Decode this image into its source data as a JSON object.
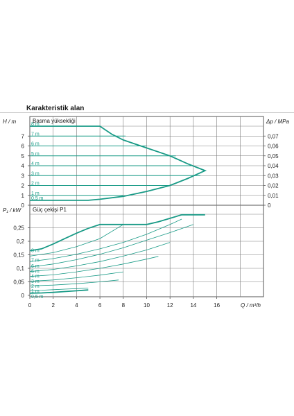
{
  "header": {
    "title": "Karakteristik alan"
  },
  "chart_data": [
    {
      "type": "line",
      "title": "Basma yüksekliği",
      "ylabel": "H / m",
      "y2label": "Δp / MPa",
      "xlim": [
        0,
        20
      ],
      "ylim": [
        0,
        8
      ],
      "y2lim": [
        0,
        0.08
      ],
      "yticks": [
        "0",
        "1",
        "2",
        "3",
        "4",
        "5",
        "6",
        "7"
      ],
      "y2ticks": [
        "0",
        "0,01",
        "0,02",
        "0,03",
        "0,04",
        "0,05",
        "0,06",
        "0,07"
      ],
      "grid": true,
      "levels": [
        {
          "label": "8 m",
          "h": 8,
          "q_end": 6.0
        },
        {
          "label": "7 m",
          "h": 7,
          "q_end": 8.2
        },
        {
          "label": "6 m",
          "h": 6,
          "q_end": 10.0
        },
        {
          "label": "5 m",
          "h": 5,
          "q_end": 12.5
        },
        {
          "label": "4 m",
          "h": 4,
          "q_end": 13.8
        },
        {
          "label": "3 m",
          "h": 3,
          "q_end": 14.6
        },
        {
          "label": "2 m",
          "h": 2,
          "q_end": 12.0
        },
        {
          "label": "1 m",
          "h": 1,
          "q_end": 8.0
        },
        {
          "label": "0,5 m",
          "h": 0.5,
          "q_end": 5.0
        }
      ],
      "envelope": [
        [
          0,
          8
        ],
        [
          6.0,
          8
        ],
        [
          7.0,
          7.2
        ],
        [
          8.0,
          6.6
        ],
        [
          10.0,
          5.8
        ],
        [
          12.0,
          5.0
        ],
        [
          13.5,
          4.2
        ],
        [
          15.0,
          3.5
        ],
        [
          13.5,
          2.7
        ],
        [
          12.0,
          2.0
        ],
        [
          10.0,
          1.4
        ],
        [
          8.0,
          0.9
        ],
        [
          6.0,
          0.6
        ],
        [
          5.0,
          0.5
        ],
        [
          0,
          0.5
        ]
      ]
    },
    {
      "type": "line",
      "title": "Güç çekişi P1",
      "ylabel": "P₁ / kW",
      "xlabel": "Q / m³/h",
      "xlim": [
        0,
        20
      ],
      "ylim": [
        0,
        0.3
      ],
      "xticks": [
        "0",
        "2",
        "4",
        "6",
        "8",
        "10",
        "12",
        "14",
        "16"
      ],
      "yticks": [
        "0",
        "0,05",
        "0,1",
        "0,15",
        "0,2",
        "0,25"
      ],
      "grid": true,
      "level_labels": [
        "8 m",
        "7 m",
        "6 m",
        "5 m",
        "4 m",
        "3 m",
        "2 m",
        "1 m",
        "0,5 m"
      ],
      "series": [
        {
          "points": [
            [
              0,
              0.165
            ],
            [
              1.0,
              0.172
            ],
            [
              2.0,
              0.19
            ],
            [
              3.0,
              0.21
            ],
            [
              4.0,
              0.23
            ],
            [
              5.0,
              0.248
            ],
            [
              6.0,
              0.262
            ],
            [
              10.0,
              0.262
            ],
            [
              11.0,
              0.272
            ],
            [
              12.0,
              0.285
            ],
            [
              13.0,
              0.298
            ],
            [
              15.0,
              0.298
            ]
          ]
        },
        {
          "points": [
            [
              0,
              0.145
            ],
            [
              2,
              0.158
            ],
            [
              4,
              0.18
            ],
            [
              6,
              0.21
            ],
            [
              8,
              0.262
            ]
          ]
        },
        {
          "points": [
            [
              0,
              0.125
            ],
            [
              2,
              0.136
            ],
            [
              4,
              0.152
            ],
            [
              6,
              0.172
            ],
            [
              8,
              0.196
            ],
            [
              10,
              0.226
            ],
            [
              12,
              0.262
            ],
            [
              13,
              0.282
            ]
          ]
        },
        {
          "points": [
            [
              0,
              0.105
            ],
            [
              2,
              0.116
            ],
            [
              4,
              0.132
            ],
            [
              6,
              0.152
            ],
            [
              8,
              0.176
            ],
            [
              10,
              0.204
            ],
            [
              12,
              0.232
            ],
            [
              14,
              0.262
            ]
          ]
        },
        {
          "points": [
            [
              0,
              0.088
            ],
            [
              2,
              0.096
            ],
            [
              4,
              0.109
            ],
            [
              6,
              0.125
            ],
            [
              8,
              0.145
            ],
            [
              10,
              0.168
            ],
            [
              12,
              0.196
            ]
          ]
        },
        {
          "points": [
            [
              0,
              0.07
            ],
            [
              2,
              0.076
            ],
            [
              4,
              0.087
            ],
            [
              6,
              0.1
            ],
            [
              8,
              0.116
            ],
            [
              10,
              0.134
            ],
            [
              11,
              0.144
            ]
          ]
        },
        {
          "points": [
            [
              0,
              0.052
            ],
            [
              2,
              0.057
            ],
            [
              4,
              0.065
            ],
            [
              6,
              0.075
            ],
            [
              8,
              0.087
            ]
          ]
        },
        {
          "points": [
            [
              0,
              0.035
            ],
            [
              2,
              0.038
            ],
            [
              4,
              0.043
            ],
            [
              6,
              0.05
            ],
            [
              7.6,
              0.057
            ]
          ]
        },
        {
          "points": [
            [
              0,
              0.018
            ],
            [
              1,
              0.019
            ],
            [
              2,
              0.021
            ],
            [
              3,
              0.023
            ],
            [
              4,
              0.025
            ],
            [
              5,
              0.027
            ]
          ]
        },
        {
          "points": [
            [
              0,
              0.008
            ],
            [
              1,
              0.009
            ],
            [
              2,
              0.011
            ],
            [
              3,
              0.014
            ],
            [
              4,
              0.017
            ],
            [
              5,
              0.02
            ]
          ]
        }
      ]
    }
  ],
  "colors": {
    "accent": "#189a86",
    "grid": "#7a7a7a",
    "text": "#1a1a1a"
  }
}
